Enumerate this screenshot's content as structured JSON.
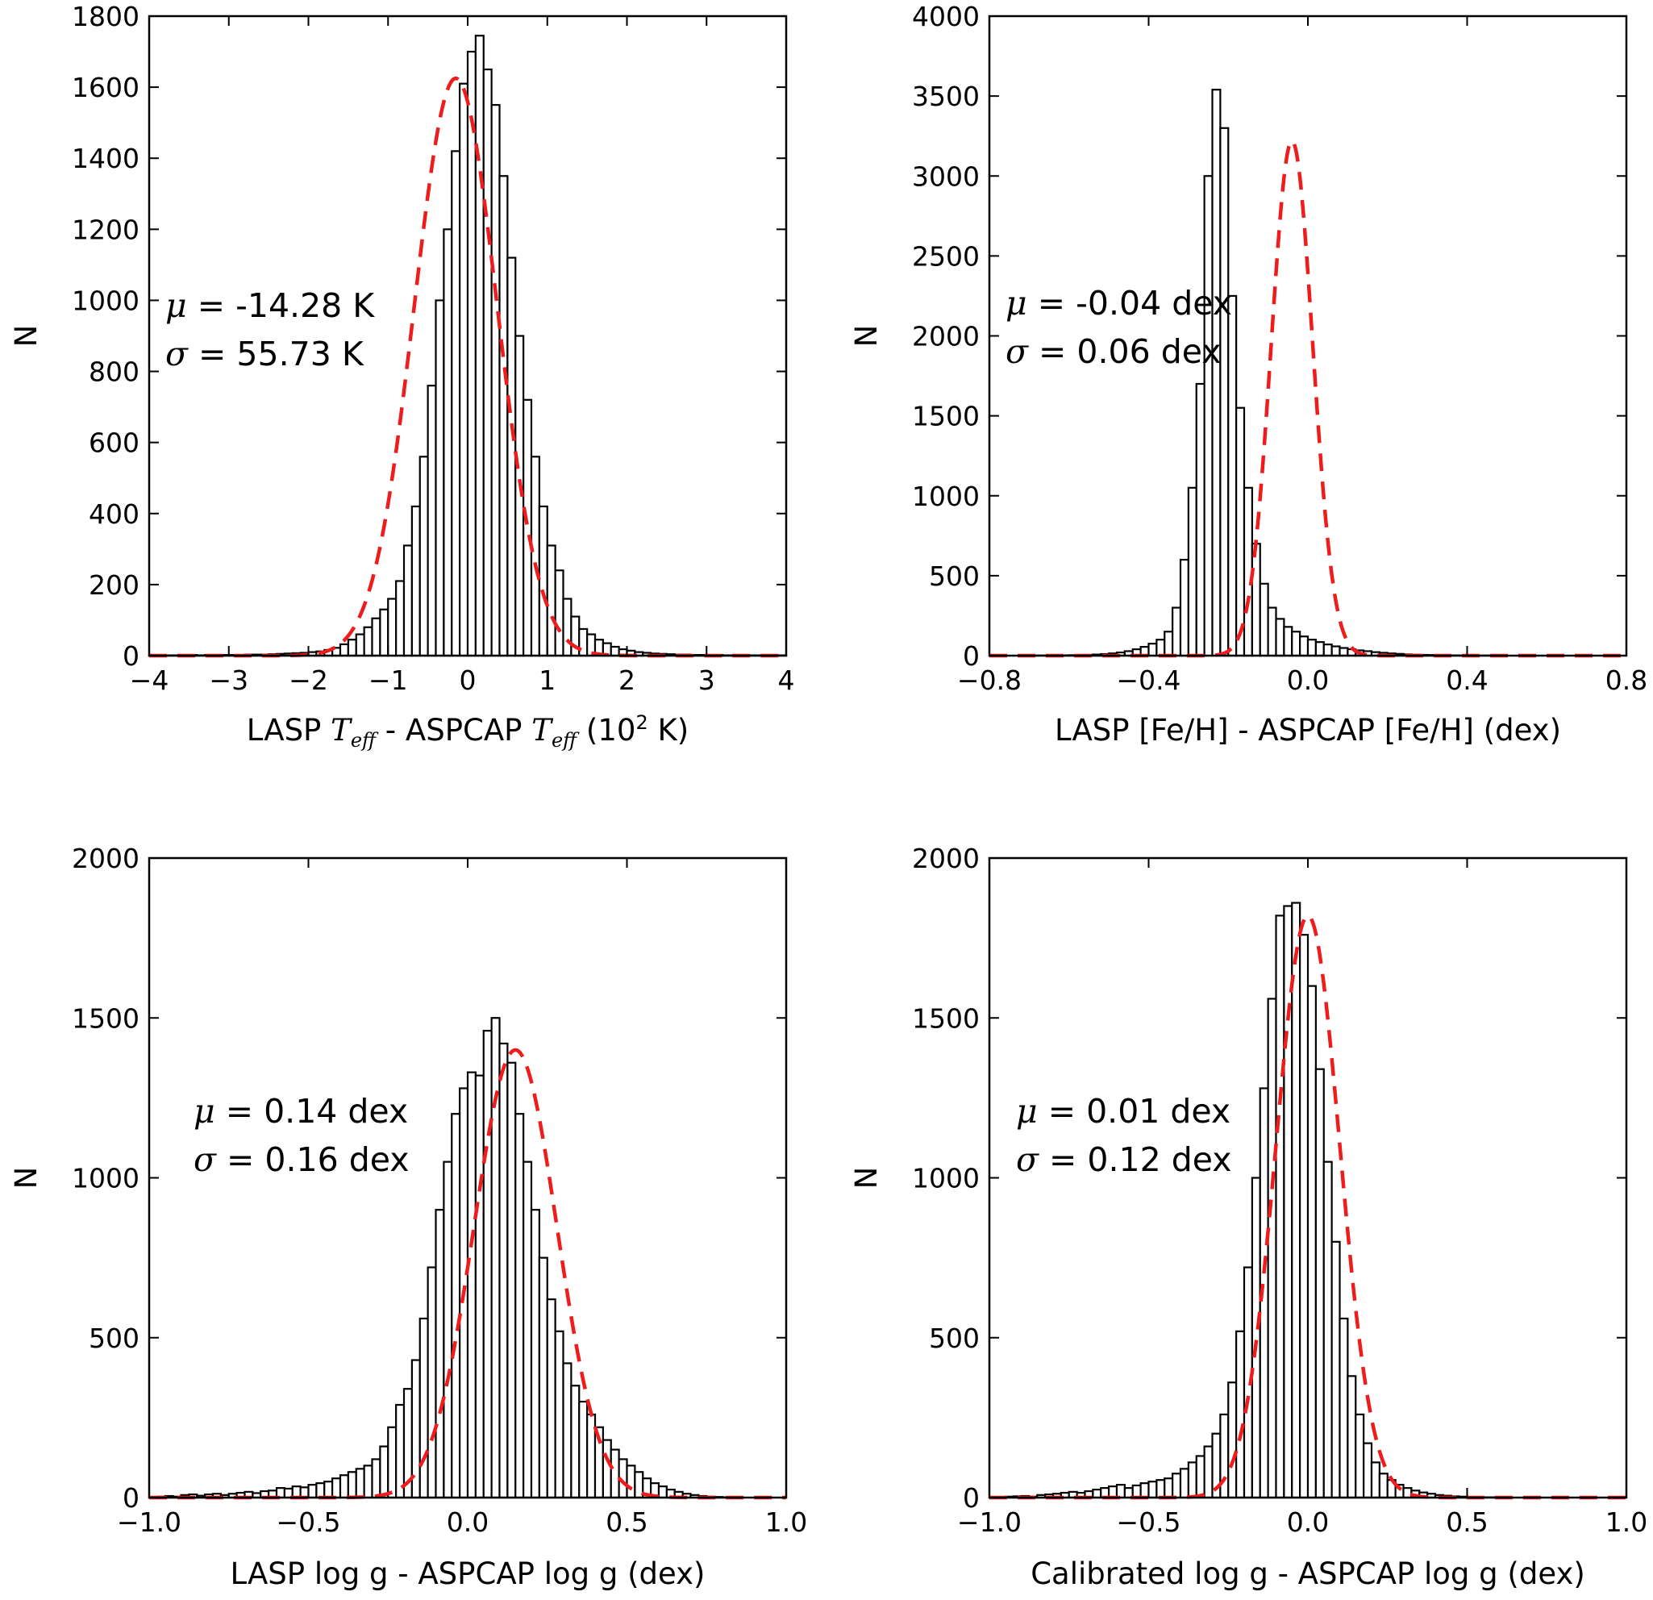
{
  "chart_data": [
    {
      "type": "bar",
      "kind": "histogram",
      "title": "",
      "xlabel": "LASP T_eff - ASPCAP T_eff (10^2 K)",
      "xlabel_parts": [
        "LASP ",
        "T",
        "eff",
        " - ASPCAP ",
        "T",
        "eff",
        " (10",
        "2",
        " K)"
      ],
      "ylabel": "N",
      "xlim": [
        -4,
        4
      ],
      "ylim": [
        0,
        1800
      ],
      "xticks": [
        -4,
        -3,
        -2,
        -1,
        0,
        1,
        2,
        3,
        4
      ],
      "xtick_labels": [
        "−4",
        "−3",
        "−2",
        "−1",
        "0",
        "1",
        "2",
        "3",
        "4"
      ],
      "yticks": [
        0,
        200,
        400,
        600,
        800,
        1000,
        1200,
        1400,
        1600,
        1800
      ],
      "ytick_labels": [
        "0",
        "200",
        "400",
        "600",
        "800",
        "1000",
        "1200",
        "1400",
        "1600",
        "1800"
      ],
      "grid": false,
      "bin_start": -4.0,
      "bin_width": 0.1,
      "counts": [
        1,
        1,
        1,
        1,
        1,
        2,
        1,
        2,
        2,
        2,
        2,
        2,
        3,
        3,
        3,
        4,
        5,
        6,
        7,
        8,
        10,
        12,
        16,
        22,
        32,
        45,
        60,
        80,
        105,
        130,
        160,
        210,
        310,
        420,
        560,
        760,
        1000,
        1200,
        1420,
        1610,
        1700,
        1745,
        1650,
        1550,
        1350,
        1120,
        900,
        720,
        560,
        420,
        310,
        240,
        160,
        110,
        75,
        60,
        45,
        35,
        25,
        18,
        14,
        10,
        8,
        6,
        5,
        4,
        3,
        3,
        2,
        2,
        2,
        2,
        1,
        1,
        1,
        1,
        1,
        1,
        1,
        1
      ],
      "fit": {
        "mu": -0.15,
        "sigma": 0.52,
        "peak": 1625,
        "style": "red dashed"
      },
      "annotations": [
        {
          "symbol": "μ",
          "text": " = -14.28 K"
        },
        {
          "symbol": "σ",
          "text": " = 55.73 K"
        }
      ]
    },
    {
      "type": "bar",
      "kind": "histogram",
      "title": "",
      "xlabel": "LASP [Fe/H] - ASPCAP [Fe/H] (dex)",
      "xlabel_parts": [
        "LASP [Fe/H] - ASPCAP [Fe/H] (dex)"
      ],
      "ylabel": "N",
      "xlim": [
        -0.8,
        0.8
      ],
      "ylim": [
        0,
        4000
      ],
      "xticks": [
        -0.8,
        -0.4,
        0.0,
        0.4,
        0.8
      ],
      "xtick_labels": [
        "−0.8",
        "−0.4",
        "0.0",
        "0.4",
        "0.8"
      ],
      "yticks": [
        0,
        500,
        1000,
        1500,
        2000,
        2500,
        3000,
        3500,
        4000
      ],
      "ytick_labels": [
        "0",
        "500",
        "1000",
        "1500",
        "2000",
        "2500",
        "3000",
        "3500",
        "4000"
      ],
      "grid": false,
      "bin_start": -0.8,
      "bin_width": 0.02,
      "counts": [
        0,
        0,
        0,
        0,
        1,
        1,
        1,
        1,
        2,
        2,
        3,
        4,
        5,
        7,
        10,
        14,
        20,
        28,
        40,
        55,
        75,
        100,
        150,
        300,
        600,
        1050,
        1700,
        3000,
        3540,
        3300,
        2250,
        1550,
        1050,
        700,
        450,
        300,
        230,
        180,
        150,
        120,
        100,
        85,
        70,
        58,
        48,
        40,
        33,
        28,
        22,
        18,
        14,
        11,
        8,
        6,
        5,
        4,
        3,
        2,
        2,
        1,
        1,
        1,
        1,
        0,
        0,
        0,
        0,
        0,
        0,
        0,
        0,
        0,
        0,
        0,
        0,
        0,
        0,
        0,
        0,
        0
      ],
      "fit": {
        "mu": -0.04,
        "sigma": 0.052,
        "peak": 3220,
        "style": "red dashed"
      },
      "annotations": [
        {
          "symbol": "μ",
          "text": " = -0.04 dex"
        },
        {
          "symbol": "σ",
          "text": " = 0.06 dex"
        }
      ]
    },
    {
      "type": "bar",
      "kind": "histogram",
      "title": "",
      "xlabel": "LASP log g - ASPCAP log g (dex)",
      "xlabel_parts": [
        "LASP log g - ASPCAP log g (dex)"
      ],
      "ylabel": "N",
      "xlim": [
        -1.0,
        1.0
      ],
      "ylim": [
        0,
        2000
      ],
      "xticks": [
        -1.0,
        -0.5,
        0.0,
        0.5,
        1.0
      ],
      "xtick_labels": [
        "−1.0",
        "−0.5",
        "0.0",
        "0.5",
        "1.0"
      ],
      "yticks": [
        0,
        500,
        1000,
        1500,
        2000
      ],
      "ytick_labels": [
        "0",
        "500",
        "1000",
        "1500",
        "2000"
      ],
      "grid": false,
      "bin_start": -1.0,
      "bin_width": 0.025,
      "counts": [
        0,
        3,
        5,
        3,
        8,
        10,
        6,
        10,
        12,
        8,
        12,
        15,
        18,
        14,
        20,
        22,
        30,
        28,
        35,
        32,
        40,
        45,
        50,
        60,
        70,
        80,
        90,
        100,
        120,
        160,
        220,
        290,
        340,
        430,
        560,
        720,
        900,
        1050,
        1200,
        1280,
        1330,
        1320,
        1460,
        1500,
        1420,
        1360,
        1200,
        1050,
        900,
        750,
        620,
        520,
        420,
        350,
        300,
        260,
        220,
        180,
        150,
        120,
        100,
        80,
        60,
        45,
        35,
        25,
        18,
        12,
        8,
        5,
        3,
        2,
        1,
        1,
        0,
        0,
        0,
        0,
        0,
        0
      ],
      "fit": {
        "mu": 0.15,
        "sigma": 0.13,
        "peak": 1400,
        "style": "red dashed"
      },
      "annotations": [
        {
          "symbol": "μ",
          "text": " = 0.14 dex"
        },
        {
          "symbol": "σ",
          "text": " = 0.16 dex"
        }
      ]
    },
    {
      "type": "bar",
      "kind": "histogram",
      "title": "",
      "xlabel": "Calibrated log g - ASPCAP log g (dex)",
      "xlabel_parts": [
        "Calibrated log g - ASPCAP log g (dex)"
      ],
      "ylabel": "N",
      "xlim": [
        -1.0,
        1.0
      ],
      "ylim": [
        0,
        2000
      ],
      "xticks": [
        -1.0,
        -0.5,
        0.0,
        0.5,
        1.0
      ],
      "xtick_labels": [
        "−1.0",
        "−0.5",
        "0.0",
        "0.5",
        "1.0"
      ],
      "yticks": [
        0,
        500,
        1000,
        1500,
        2000
      ],
      "ytick_labels": [
        "0",
        "500",
        "1000",
        "1500",
        "2000"
      ],
      "grid": false,
      "bin_start": -1.0,
      "bin_width": 0.025,
      "counts": [
        0,
        2,
        3,
        4,
        5,
        3,
        8,
        10,
        12,
        15,
        18,
        15,
        20,
        25,
        30,
        35,
        40,
        30,
        38,
        45,
        50,
        55,
        60,
        75,
        90,
        110,
        130,
        160,
        200,
        260,
        360,
        520,
        720,
        1000,
        1280,
        1560,
        1820,
        1850,
        1860,
        1760,
        1600,
        1340,
        1050,
        800,
        560,
        380,
        260,
        170,
        110,
        75,
        55,
        40,
        30,
        22,
        16,
        12,
        8,
        6,
        4,
        3,
        2,
        1,
        1,
        1,
        0,
        0,
        0,
        0,
        0,
        0,
        0,
        0,
        0,
        0,
        0,
        0,
        0,
        0,
        0,
        0
      ],
      "fit": {
        "mu": 0.0,
        "sigma": 0.1,
        "peak": 1820,
        "style": "red dashed"
      },
      "annotations": [
        {
          "symbol": "μ",
          "text": " = 0.01 dex"
        },
        {
          "symbol": "σ",
          "text": " = 0.12 dex"
        }
      ]
    }
  ]
}
